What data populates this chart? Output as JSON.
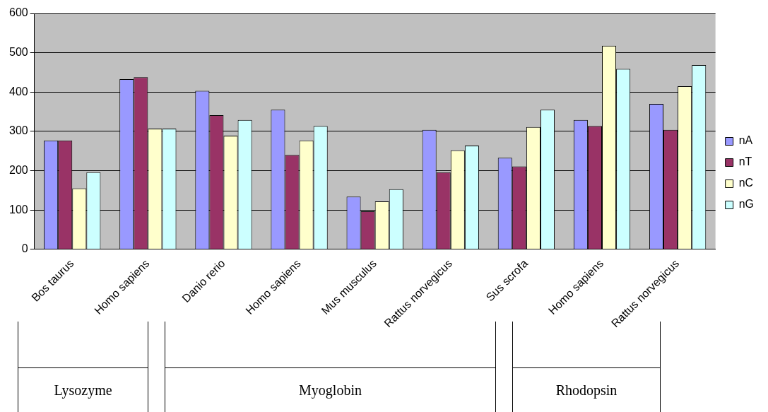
{
  "chart_data": {
    "type": "bar",
    "categories": [
      "Bos taurus",
      "Homo sapiens",
      "Danio rerio",
      "Homo sapiens",
      "Mus musculus",
      "Rattus norvegicus",
      "Sus scrofa",
      "Homo sapiens",
      "Rattus norvegicus"
    ],
    "series": [
      {
        "name": "nA",
        "color": "#9999ff",
        "values": [
          277,
          433,
          403,
          355,
          134,
          304,
          233,
          329,
          370
        ]
      },
      {
        "name": "nT",
        "color": "#993366",
        "values": [
          277,
          438,
          341,
          240,
          97,
          196,
          211,
          314,
          304
        ]
      },
      {
        "name": "nC",
        "color": "#ffffcc",
        "values": [
          155,
          307,
          289,
          277,
          122,
          252,
          311,
          518,
          415
        ]
      },
      {
        "name": "nG",
        "color": "#ccffff",
        "values": [
          196,
          307,
          329,
          314,
          153,
          264,
          355,
          459,
          469
        ]
      }
    ],
    "ylim": [
      0,
      600
    ],
    "yticks": [
      0,
      100,
      200,
      300,
      400,
      500,
      600
    ],
    "grid": "y",
    "legend": "right",
    "annotations": [
      "Lysozyme",
      "Myoglobin",
      "Rhodopsin"
    ]
  }
}
